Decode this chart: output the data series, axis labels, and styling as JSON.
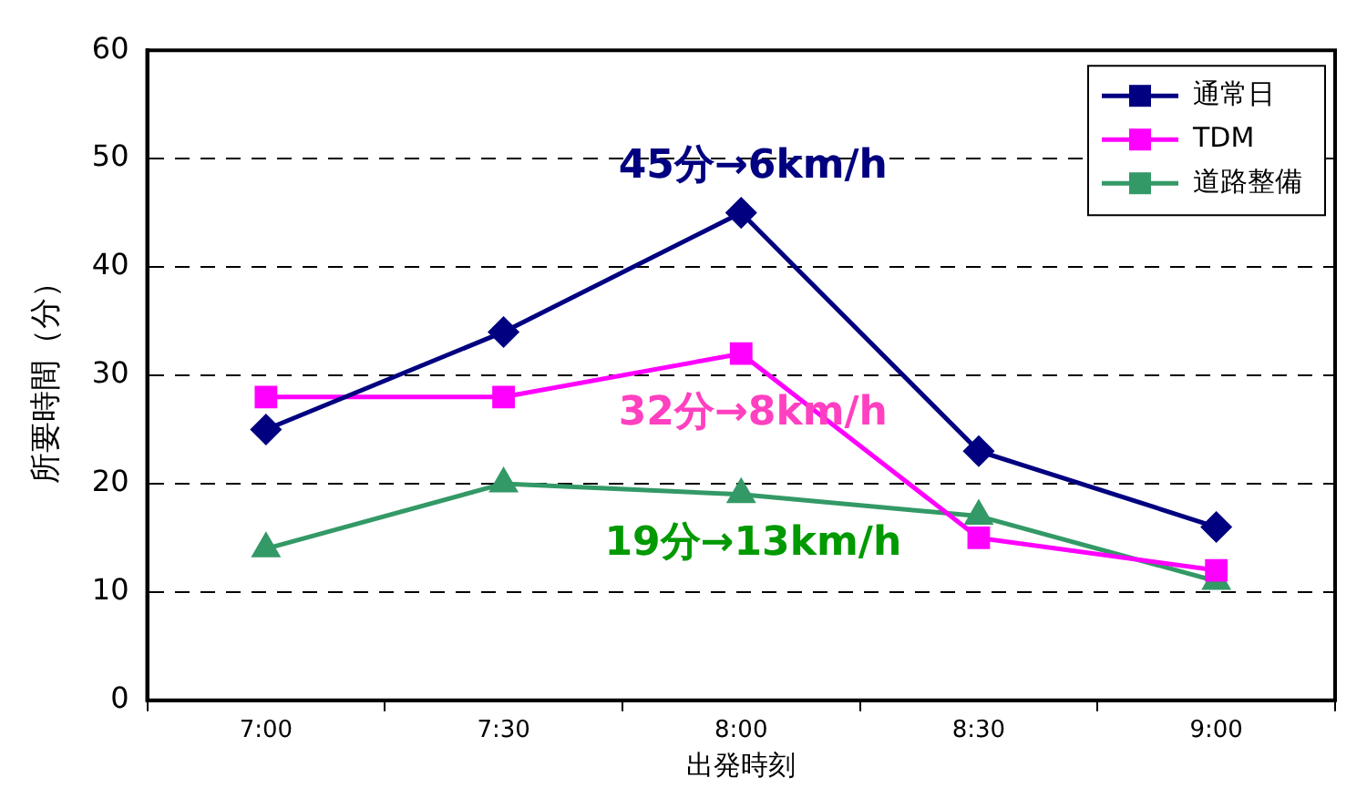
{
  "chart_data": {
    "type": "line",
    "xlabel": "出発時刻",
    "ylabel": "所要時間（分）",
    "categories": [
      "7:00",
      "7:30",
      "8:00",
      "8:30",
      "9:00"
    ],
    "series": [
      {
        "name": "通常日",
        "color": "#000080",
        "values": [
          25,
          34,
          45,
          23,
          16
        ],
        "marker": "diamond"
      },
      {
        "name": "TDM",
        "color": "#ff00ff",
        "values": [
          28,
          28,
          32,
          15,
          12
        ],
        "marker": "square"
      },
      {
        "name": "道路整備",
        "color": "#339966",
        "values": [
          14,
          20,
          19,
          17,
          11
        ],
        "marker": "triangle"
      }
    ],
    "annotations": [
      "45分→6km/h",
      "32分→8km/h",
      "19分→13km/h"
    ],
    "ylim": [
      0,
      60
    ],
    "yticks": [
      0,
      10,
      20,
      30,
      40,
      50,
      60
    ],
    "grid": "y",
    "legend": "top right",
    "line_style": "solid"
  }
}
